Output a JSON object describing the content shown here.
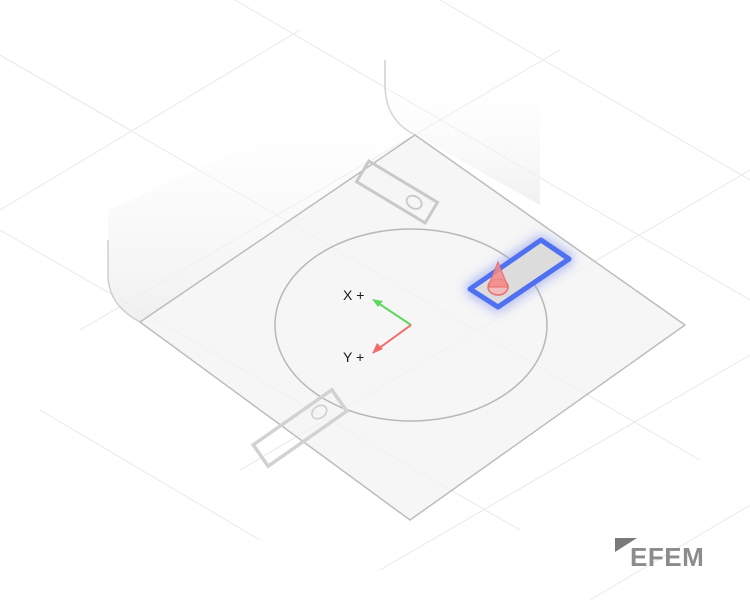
{
  "scene": {
    "axes": {
      "x_label": "X +",
      "y_label": "Y +",
      "x_color": "#5fd85f",
      "y_color": "#f26a6a"
    },
    "selection_color": "#4f6ff0",
    "marker_color": "#f47b7b"
  },
  "brand": {
    "text": "EFEM"
  }
}
